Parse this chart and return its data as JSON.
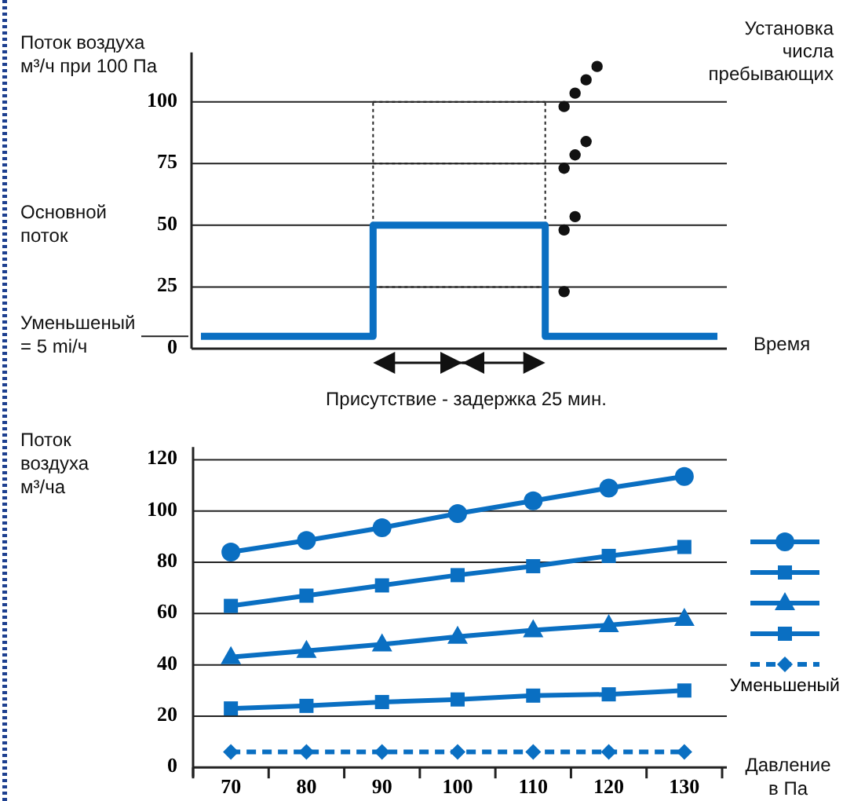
{
  "chart_data": [
    {
      "type": "step",
      "categories": [
        null,
        null,
        null,
        null
      ],
      "values": [
        5,
        50,
        5,
        5
      ],
      "color": "#0a6fc2",
      "ylim": [
        0,
        120
      ],
      "yticks": [
        0,
        25,
        50,
        75,
        100
      ],
      "grid": "y",
      "ylabel": "Поток воздуха\nм³/ч при 100 Па",
      "xlabel": "Время",
      "annotations": [
        "Основной\nпоток",
        "Уменьшеный\n= 5 mi/ч",
        "Установка\nчисла\nпребывающих",
        "Присутствие - задержка 25 мин."
      ]
    },
    {
      "type": "line",
      "categories": [
        "70",
        "80",
        "90",
        "100",
        "110",
        "120",
        "130"
      ],
      "ylim": [
        0,
        125
      ],
      "yticks": [
        0,
        20,
        40,
        60,
        80,
        100,
        120
      ],
      "grid": "y",
      "ylabel": "Поток\nвоздуха\nм³/ча",
      "xlabel": "Давление\nв Па",
      "legend": "right",
      "series": [
        {
          "color": "#0a6fc2",
          "marker": "circle",
          "values": [
            84,
            88.5,
            93.5,
            99,
            104,
            109,
            113.5
          ]
        },
        {
          "color": "#0a6fc2",
          "marker": "square",
          "values": [
            63,
            67,
            71,
            75,
            78.5,
            82.5,
            86
          ]
        },
        {
          "color": "#0a6fc2",
          "marker": "triangle",
          "values": [
            43,
            45.5,
            48,
            51,
            53.5,
            55.5,
            58
          ]
        },
        {
          "color": "#0a6fc2",
          "marker": "square",
          "values": [
            23,
            24,
            25.5,
            26.5,
            28,
            28.5,
            30
          ]
        },
        {
          "name": "Уменьшеный",
          "color": "#0a6fc2",
          "marker": "diamond",
          "line_style": "dashed",
          "values": [
            6,
            6,
            6,
            6,
            6,
            6,
            6
          ]
        }
      ]
    }
  ]
}
